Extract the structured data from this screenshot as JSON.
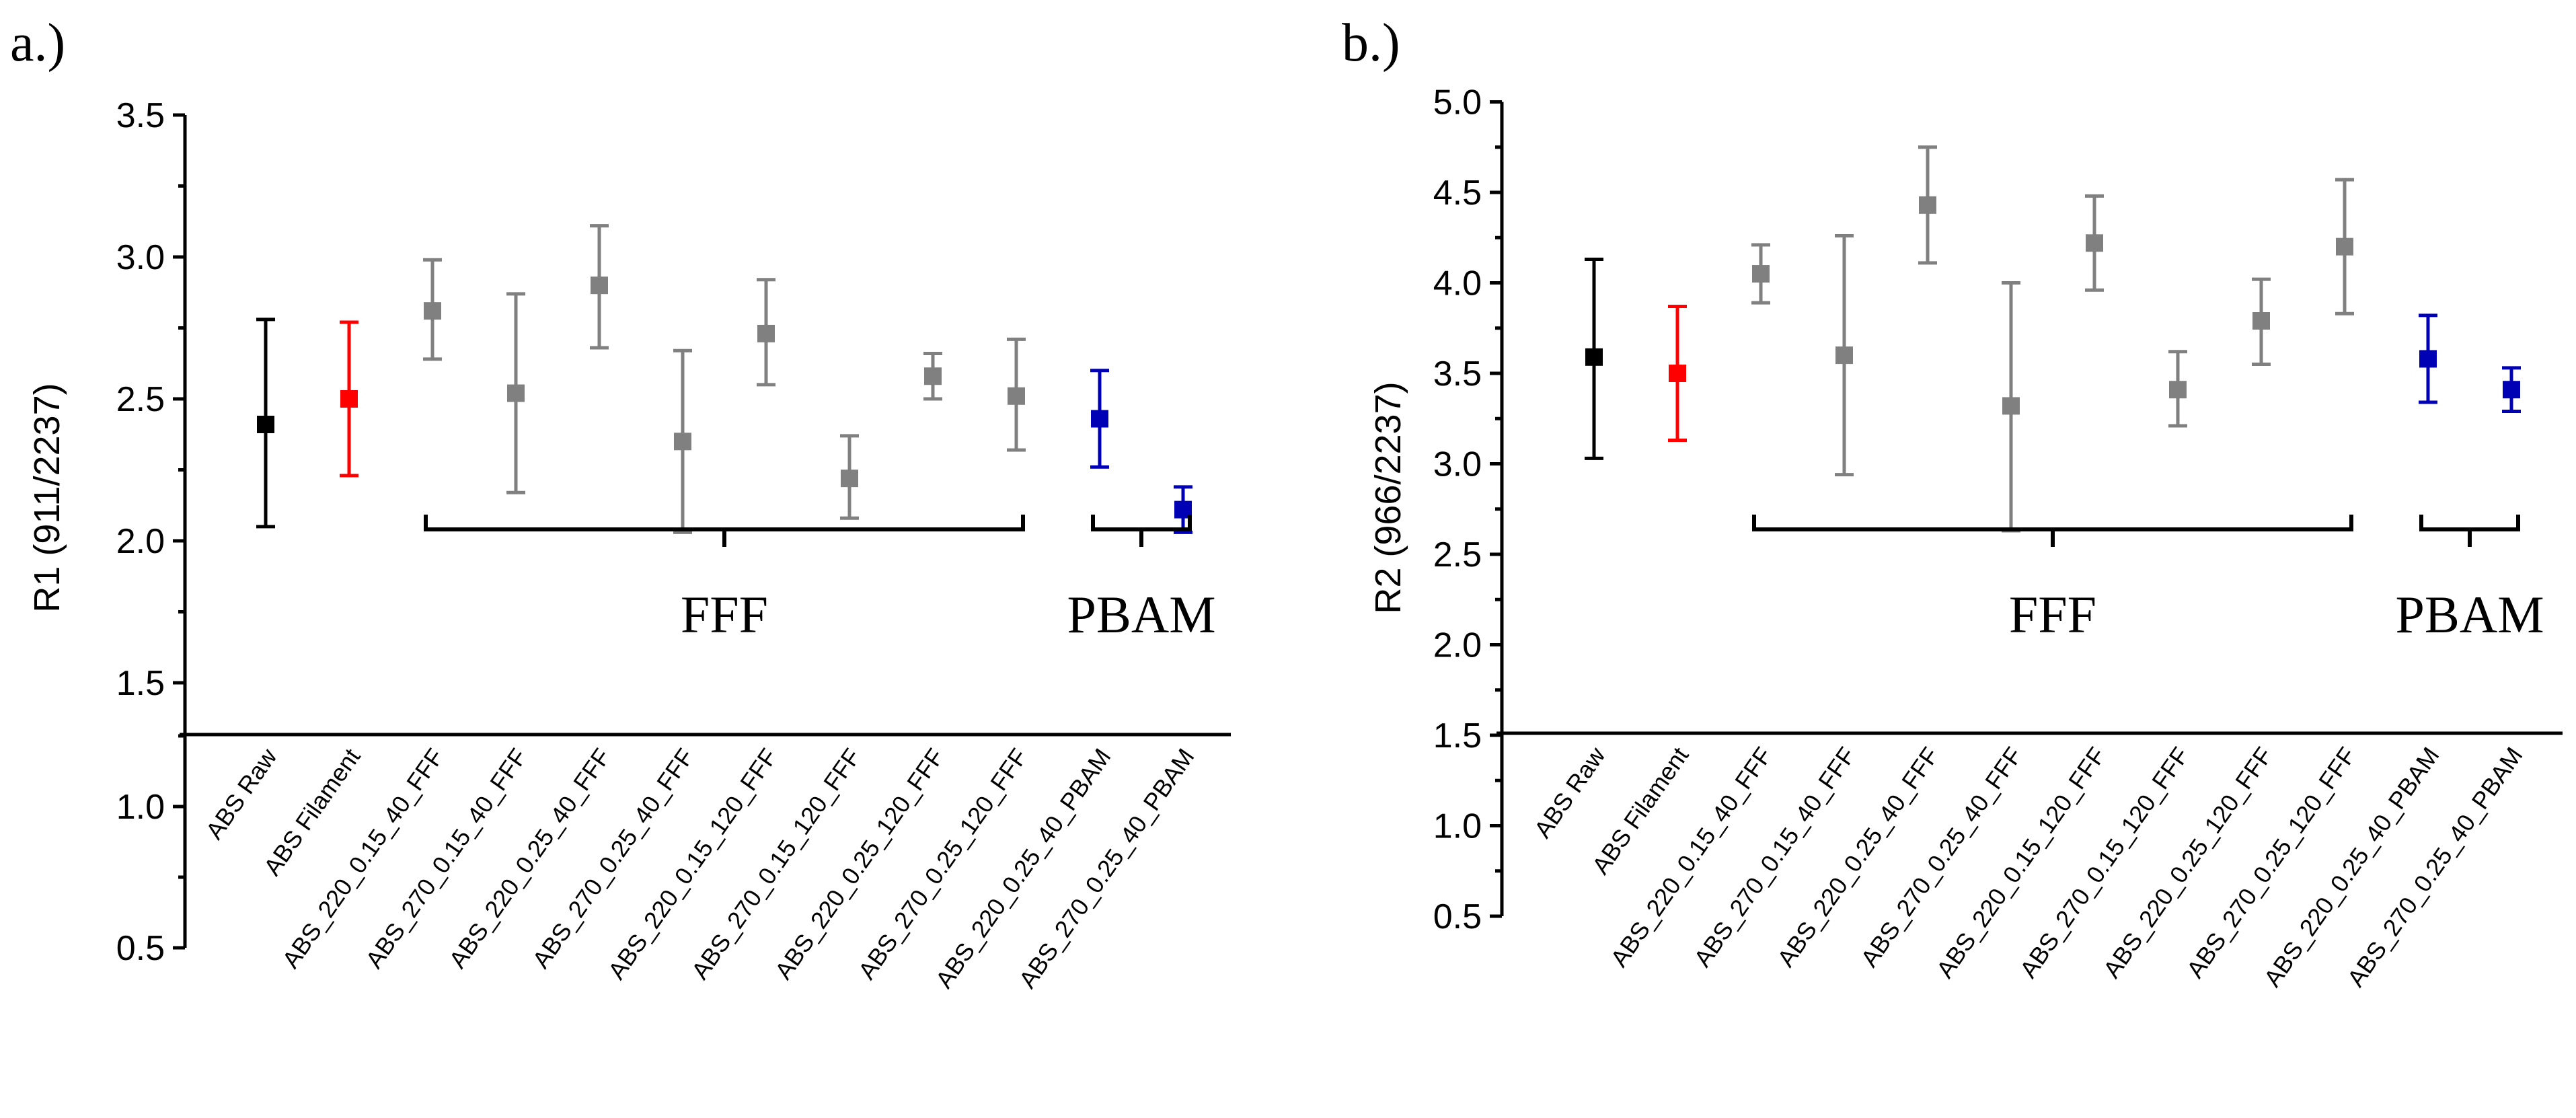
{
  "chart_data": [
    {
      "type": "scatter",
      "panel_label": "a.)",
      "ylabel": "R1 (911/2237)",
      "ylim": [
        0.5,
        3.5
      ],
      "yticks": [
        "0.5",
        "1.0",
        "1.5",
        "2.0",
        "2.5",
        "3.0",
        "3.5"
      ],
      "axis_break": [
        1.28,
        1.29
      ],
      "categories": [
        "ABS Raw",
        "ABS Filament",
        "ABS_220_0.15_40_FFF",
        "ABS_270_0.15_40_FFF",
        "ABS_220_0.25_40_FFF",
        "ABS_270_0.25_40_FFF",
        "ABS_220_0.15_120_FFF",
        "ABS_270_0.15_120_FFF",
        "ABS_220_0.25_120_FFF",
        "ABS_270_0.25_120_FFF",
        "ABS_220_0.25_40_PBAM",
        "ABS_270_0.25_40_PBAM"
      ],
      "values": [
        2.41,
        2.5,
        2.81,
        2.52,
        2.9,
        2.35,
        2.73,
        2.22,
        2.58,
        2.51,
        2.43,
        2.11
      ],
      "error_low": [
        2.05,
        2.23,
        2.64,
        2.17,
        2.68,
        2.03,
        2.55,
        2.08,
        2.5,
        2.32,
        2.26,
        2.03
      ],
      "error_high": [
        2.78,
        2.77,
        2.99,
        2.87,
        3.11,
        2.67,
        2.92,
        2.37,
        2.66,
        2.71,
        2.6,
        2.19
      ],
      "colors": [
        "#000000",
        "#ff0000",
        "#808080",
        "#808080",
        "#808080",
        "#808080",
        "#808080",
        "#808080",
        "#808080",
        "#808080",
        "#0000b4",
        "#0000b4"
      ],
      "groups": [
        {
          "label": "FFF",
          "start": 2,
          "end": 9
        },
        {
          "label": "PBAM",
          "start": 10,
          "end": 11
        }
      ]
    },
    {
      "type": "scatter",
      "panel_label": "b.)",
      "ylabel": "R2 (966/2237)",
      "ylim": [
        0.5,
        5.0
      ],
      "yticks": [
        "0.5",
        "1.0",
        "1.5",
        "2.0",
        "2.5",
        "3.0",
        "3.5",
        "4.0",
        "4.5",
        "5.0"
      ],
      "axis_break": [
        1.5,
        1.5
      ],
      "categories": [
        "ABS Raw",
        "ABS Filament",
        "ABS_220_0.15_40_FFF",
        "ABS_270_0.15_40_FFF",
        "ABS_220_0.25_40_FFF",
        "ABS_270_0.25_40_FFF",
        "ABS_220_0.15_120_FFF",
        "ABS_270_0.15_120_FFF",
        "ABS_220_0.25_120_FFF",
        "ABS_270_0.25_120_FFF",
        "ABS_220_0.25_40_PBAM",
        "ABS_270_0.25_40_PBAM"
      ],
      "values": [
        3.59,
        3.5,
        4.05,
        3.6,
        4.43,
        3.32,
        4.22,
        3.41,
        3.79,
        4.2,
        3.58,
        3.41
      ],
      "error_low": [
        3.03,
        3.13,
        3.89,
        2.94,
        4.11,
        2.63,
        3.96,
        3.21,
        3.55,
        3.83,
        3.34,
        3.29
      ],
      "error_high": [
        4.13,
        3.87,
        4.21,
        4.26,
        4.75,
        4.0,
        4.48,
        3.62,
        4.02,
        4.57,
        3.82,
        3.53
      ],
      "colors": [
        "#000000",
        "#ff0000",
        "#808080",
        "#808080",
        "#808080",
        "#808080",
        "#808080",
        "#808080",
        "#808080",
        "#808080",
        "#0000b4",
        "#0000b4"
      ],
      "groups": [
        {
          "label": "FFF",
          "start": 2,
          "end": 9
        },
        {
          "label": "PBAM",
          "start": 10,
          "end": 11
        }
      ]
    }
  ]
}
